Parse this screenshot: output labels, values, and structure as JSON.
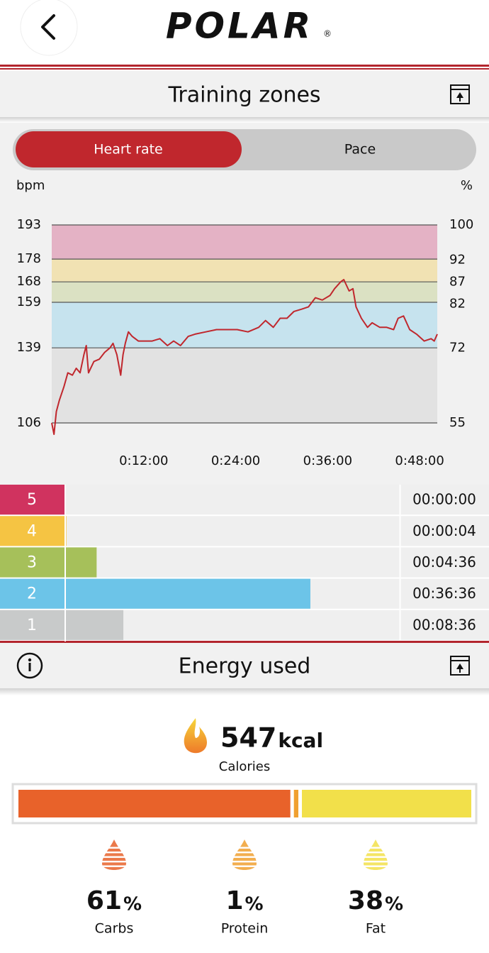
{
  "header": {
    "logo": "POLAR",
    "registered": "®"
  },
  "training_zones": {
    "title": "Training zones",
    "tabs": [
      "Heart rate",
      "Pace"
    ],
    "active_tab": 0
  },
  "energy": {
    "title": "Energy used",
    "calories": 547,
    "calories_unit": "kcal",
    "calories_label": "Calories"
  },
  "chart_data": [
    {
      "type": "line",
      "y_label": "bpm",
      "y2_label": "%",
      "color": "#c0272d",
      "x": [
        0,
        0.3,
        0.6,
        1.0,
        1.6,
        2.1,
        2.7,
        3.2,
        3.7,
        4.2,
        4.5,
        4.8,
        5.5,
        6.2,
        6.9,
        7.6,
        8.0,
        8.5,
        9.0,
        9.3,
        9.6,
        10.0,
        10.5,
        11.3,
        12.2,
        13.1,
        14.1,
        15.1,
        15.9,
        16.8,
        17.8,
        18.7,
        20.1,
        21.5,
        22.8,
        24.2,
        25.6,
        27.0,
        27.9,
        28.9,
        29.8,
        30.7,
        31.6,
        32.6,
        33.5,
        34.4,
        35.3,
        36.3,
        36.9,
        37.7,
        38.1,
        38.8,
        39.3,
        39.7,
        40.4,
        41.2,
        41.8,
        42.8,
        43.7,
        44.6,
        45.2,
        45.9,
        46.7,
        47.6,
        48.6,
        49.5,
        49.9,
        50.3
      ],
      "values": [
        106,
        101,
        111,
        116,
        122,
        128,
        127,
        130,
        128,
        136,
        140,
        128,
        133,
        134,
        137,
        139,
        141,
        136,
        127,
        136,
        141,
        146,
        144,
        142,
        142,
        142,
        143,
        140,
        142,
        140,
        144,
        145,
        146,
        147,
        147,
        147,
        146,
        148,
        151,
        148,
        152,
        152,
        155,
        156,
        157,
        161,
        160,
        162,
        165,
        168,
        169,
        164,
        165,
        157,
        152,
        148,
        150,
        148,
        148,
        147,
        152,
        153,
        147,
        145,
        142,
        143,
        142,
        145
      ],
      "xlim": [
        0,
        50.3
      ],
      "xticks": [
        {
          "value": 12,
          "label": "0:12:00"
        },
        {
          "value": 24,
          "label": "0:24:00"
        },
        {
          "value": 36,
          "label": "0:36:00"
        },
        {
          "value": 48,
          "label": "0:48:00"
        }
      ],
      "ylim": [
        106,
        193
      ],
      "yticks": [
        106,
        139,
        159,
        168,
        178,
        193
      ],
      "y2lim": [
        55,
        100
      ],
      "y2ticks": [
        55,
        72,
        82,
        87,
        92,
        100
      ],
      "zone_colors": [
        "#e2e2e2",
        "#c6e3ee",
        "#dbe1c3",
        "#f1e2b3",
        "#e4b2c5"
      ],
      "grid": true
    },
    {
      "type": "bar",
      "orientation": "horizontal",
      "categories": [
        "5",
        "4",
        "3",
        "2",
        "1"
      ],
      "values": [
        0,
        4,
        276,
        2196,
        516
      ],
      "value_labels": [
        "00:00:00",
        "00:00:04",
        "00:04:36",
        "00:36:36",
        "00:08:36"
      ],
      "colors": [
        "#d0335f",
        "#f5c443",
        "#a6c05a",
        "#6cc4e8",
        "#c8caca"
      ]
    },
    {
      "type": "stacked_bar",
      "categories": [
        "Carbs",
        "Protein",
        "Fat"
      ],
      "values": [
        61,
        1,
        38
      ],
      "unit": "%",
      "colors": [
        "#e8622a",
        "#f0a030",
        "#f2e04a"
      ]
    }
  ]
}
